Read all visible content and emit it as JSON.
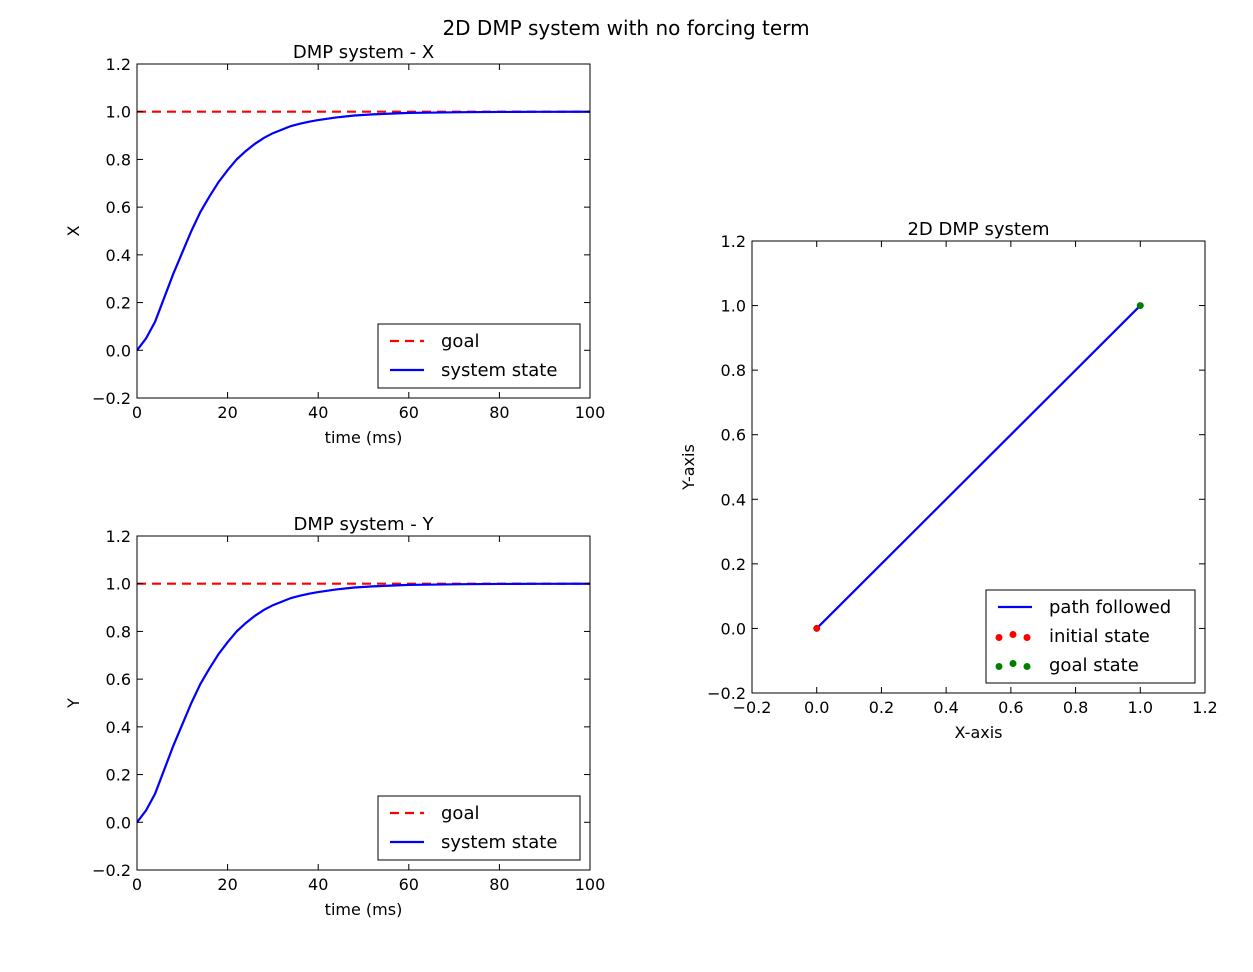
{
  "suptitle": "2D DMP system with no forcing term",
  "chart_data": [
    {
      "id": "x",
      "type": "line",
      "title": "DMP system - X",
      "xlabel": "time (ms)",
      "ylabel": "X",
      "xlim": [
        0,
        100
      ],
      "ylim": [
        -0.2,
        1.2
      ],
      "xticks": [
        0,
        20,
        40,
        60,
        80,
        100
      ],
      "yticks": [
        -0.2,
        0.0,
        0.2,
        0.4,
        0.6,
        0.8,
        1.0,
        1.2
      ],
      "xtick_labels": [
        "0",
        "20",
        "40",
        "60",
        "80",
        "100"
      ],
      "ytick_labels": [
        "−0.2",
        "0.0",
        "0.2",
        "0.4",
        "0.6",
        "0.8",
        "1.0",
        "1.2"
      ],
      "legend_position": "lower right",
      "series": [
        {
          "name": "goal",
          "style": "dashed",
          "color": "#ff0000",
          "x": [
            0,
            100
          ],
          "y": [
            1.0,
            1.0
          ]
        },
        {
          "name": "system state",
          "style": "solid",
          "color": "#0000ff",
          "x": [
            0,
            2,
            4,
            6,
            8,
            10,
            12,
            14,
            16,
            18,
            20,
            22,
            24,
            26,
            28,
            30,
            32,
            34,
            36,
            38,
            40,
            44,
            48,
            52,
            56,
            60,
            64,
            68,
            72,
            76,
            80,
            84,
            88,
            92,
            96,
            100
          ],
          "y": [
            0.0,
            0.05,
            0.12,
            0.22,
            0.32,
            0.41,
            0.5,
            0.58,
            0.645,
            0.705,
            0.755,
            0.8,
            0.835,
            0.865,
            0.89,
            0.91,
            0.925,
            0.94,
            0.95,
            0.958,
            0.965,
            0.976,
            0.984,
            0.989,
            0.992,
            0.995,
            0.996,
            0.997,
            0.998,
            0.9985,
            0.999,
            0.9993,
            0.9995,
            0.9997,
            0.9998,
            0.9999
          ]
        }
      ]
    },
    {
      "id": "y",
      "type": "line",
      "title": "DMP system - Y",
      "xlabel": "time (ms)",
      "ylabel": "Y",
      "xlim": [
        0,
        100
      ],
      "ylim": [
        -0.2,
        1.2
      ],
      "xticks": [
        0,
        20,
        40,
        60,
        80,
        100
      ],
      "yticks": [
        -0.2,
        0.0,
        0.2,
        0.4,
        0.6,
        0.8,
        1.0,
        1.2
      ],
      "xtick_labels": [
        "0",
        "20",
        "40",
        "60",
        "80",
        "100"
      ],
      "ytick_labels": [
        "−0.2",
        "0.0",
        "0.2",
        "0.4",
        "0.6",
        "0.8",
        "1.0",
        "1.2"
      ],
      "legend_position": "lower right",
      "series": [
        {
          "name": "goal",
          "style": "dashed",
          "color": "#ff0000",
          "x": [
            0,
            100
          ],
          "y": [
            1.0,
            1.0
          ]
        },
        {
          "name": "system state",
          "style": "solid",
          "color": "#0000ff",
          "x": [
            0,
            2,
            4,
            6,
            8,
            10,
            12,
            14,
            16,
            18,
            20,
            22,
            24,
            26,
            28,
            30,
            32,
            34,
            36,
            38,
            40,
            44,
            48,
            52,
            56,
            60,
            64,
            68,
            72,
            76,
            80,
            84,
            88,
            92,
            96,
            100
          ],
          "y": [
            0.0,
            0.05,
            0.12,
            0.22,
            0.32,
            0.41,
            0.5,
            0.58,
            0.645,
            0.705,
            0.755,
            0.8,
            0.835,
            0.865,
            0.89,
            0.91,
            0.925,
            0.94,
            0.95,
            0.958,
            0.965,
            0.976,
            0.984,
            0.989,
            0.992,
            0.995,
            0.996,
            0.997,
            0.998,
            0.9985,
            0.999,
            0.9993,
            0.9995,
            0.9997,
            0.9998,
            0.9999
          ]
        }
      ]
    },
    {
      "id": "xy",
      "type": "line",
      "title": "2D DMP system",
      "xlabel": "X-axis",
      "ylabel": "Y-axis",
      "xlim": [
        -0.2,
        1.2
      ],
      "ylim": [
        -0.2,
        1.2
      ],
      "xticks": [
        -0.2,
        0.0,
        0.2,
        0.4,
        0.6,
        0.8,
        1.0,
        1.2
      ],
      "yticks": [
        -0.2,
        0.0,
        0.2,
        0.4,
        0.6,
        0.8,
        1.0,
        1.2
      ],
      "xtick_labels": [
        "−0.2",
        "0.0",
        "0.2",
        "0.4",
        "0.6",
        "0.8",
        "1.0",
        "1.2"
      ],
      "ytick_labels": [
        "−0.2",
        "0.0",
        "0.2",
        "0.4",
        "0.6",
        "0.8",
        "1.0",
        "1.2"
      ],
      "legend_position": "lower right",
      "series": [
        {
          "name": "path followed",
          "style": "solid",
          "color": "#0000ff",
          "x": [
            0.0,
            1.0
          ],
          "y": [
            0.0,
            1.0
          ]
        },
        {
          "name": "initial state",
          "style": "markers",
          "color": "#ff0000",
          "x": [
            0.0
          ],
          "y": [
            0.0
          ]
        },
        {
          "name": "goal state",
          "style": "markers",
          "color": "#008000",
          "x": [
            1.0
          ],
          "y": [
            1.0
          ]
        }
      ]
    }
  ]
}
